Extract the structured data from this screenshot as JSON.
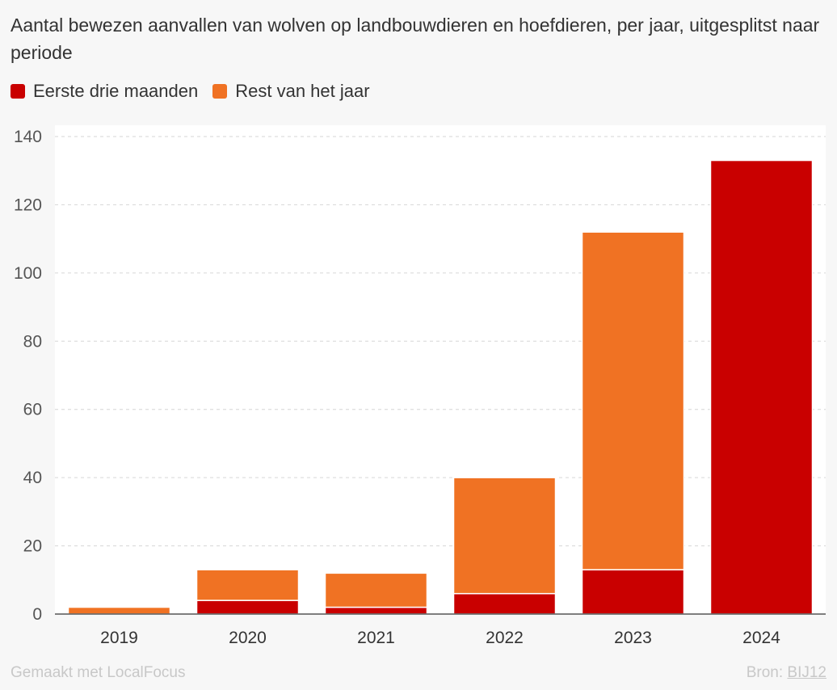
{
  "title": "Aantal bewezen aanvallen van wolven op landbouwdieren en hoefdieren, per jaar, uitgesplitst naar periode",
  "chart_data": {
    "type": "bar",
    "stacked": true,
    "title": "Aantal bewezen aanvallen van wolven op landbouwdieren en hoefdieren, per jaar, uitgesplitst naar periode",
    "categories": [
      "2019",
      "2020",
      "2021",
      "2022",
      "2023",
      "2024"
    ],
    "series": [
      {
        "name": "Eerste drie maanden",
        "color": "#c90000",
        "values": [
          0,
          4,
          2,
          6,
          13,
          133
        ]
      },
      {
        "name": "Rest van het jaar",
        "color": "#f07223",
        "values": [
          2,
          9,
          10,
          34,
          99,
          0
        ]
      }
    ],
    "ylim": [
      0,
      140
    ],
    "yticks": [
      "0",
      "20",
      "40",
      "60",
      "80",
      "100",
      "120",
      "140"
    ],
    "xlabel": "",
    "ylabel": "",
    "grid": true,
    "legend_position": "top-left"
  },
  "footer": {
    "made_with": "Gemaakt met LocalFocus",
    "source_prefix": "Bron:",
    "source_link": "BIJ12"
  }
}
